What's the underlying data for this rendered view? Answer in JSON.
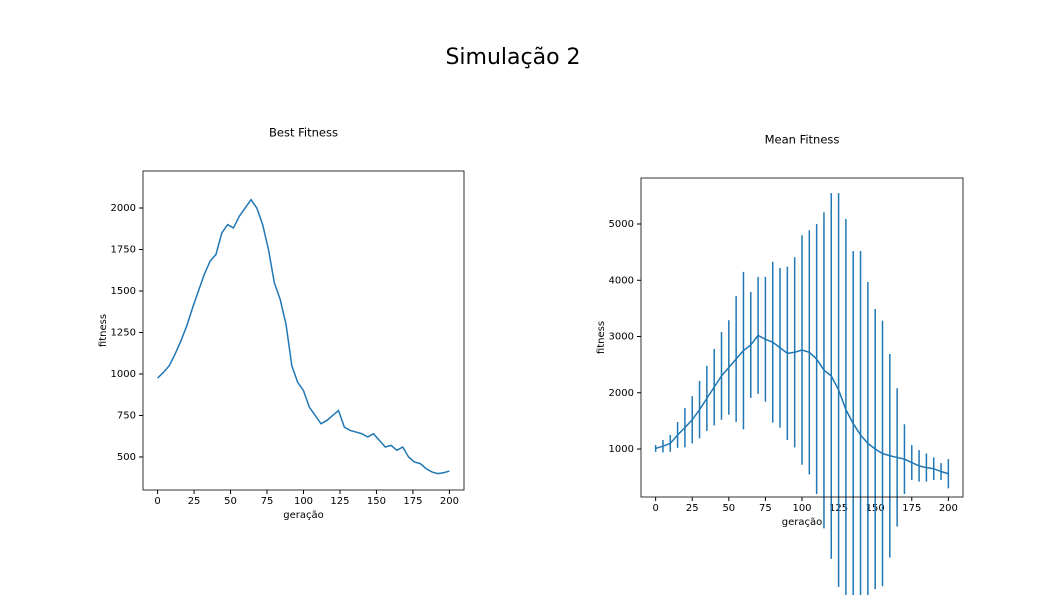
{
  "title": "Simulação 2",
  "chart_data": [
    {
      "type": "line",
      "title": "Best Fitness",
      "xlabel": "geração",
      "ylabel": "fitness",
      "x": [
        0,
        4,
        8,
        12,
        16,
        20,
        24,
        28,
        32,
        36,
        40,
        44,
        48,
        52,
        56,
        60,
        64,
        68,
        72,
        76,
        80,
        84,
        88,
        92,
        96,
        100,
        104,
        108,
        112,
        116,
        120,
        124,
        128,
        132,
        136,
        140,
        144,
        148,
        152,
        156,
        160,
        164,
        168,
        172,
        176,
        180,
        184,
        188,
        192,
        196,
        200
      ],
      "series": [
        {
          "name": "Best Fitness",
          "color": "#1f77b4",
          "values": [
            975,
            1010,
            1050,
            1120,
            1200,
            1290,
            1400,
            1500,
            1600,
            1680,
            1720,
            1850,
            1900,
            1880,
            1950,
            2000,
            2050,
            2000,
            1900,
            1750,
            1550,
            1450,
            1300,
            1050,
            950,
            900,
            800,
            750,
            700,
            720,
            750,
            780,
            680,
            660,
            650,
            640,
            620,
            640,
            600,
            560,
            570,
            540,
            560,
            500,
            470,
            460,
            430,
            410,
            400,
            405,
            415
          ]
        }
      ],
      "xlim": [
        -10,
        210
      ],
      "ylim": [
        301,
        2223
      ],
      "xticks": [
        0,
        25,
        50,
        75,
        100,
        125,
        150,
        175,
        200
      ],
      "yticks": [
        500,
        750,
        1000,
        1250,
        1500,
        1750,
        2000
      ]
    },
    {
      "type": "errorbar",
      "title": "Mean Fitness",
      "xlabel": "geração",
      "ylabel": "fitness",
      "x": [
        0,
        5,
        10,
        15,
        20,
        25,
        30,
        35,
        40,
        45,
        50,
        55,
        60,
        65,
        70,
        75,
        80,
        85,
        90,
        95,
        100,
        105,
        110,
        115,
        120,
        125,
        130,
        135,
        140,
        145,
        150,
        155,
        160,
        165,
        170,
        175,
        180,
        185,
        190,
        195,
        200
      ],
      "series": [
        {
          "name": "Mean Fitness",
          "color": "#1f77b4",
          "values": [
            1010,
            1050,
            1100,
            1250,
            1380,
            1520,
            1700,
            1900,
            2100,
            2300,
            2450,
            2600,
            2750,
            2850,
            3020,
            2950,
            2900,
            2800,
            2700,
            2720,
            2760,
            2720,
            2600,
            2400,
            2300,
            2050,
            1700,
            1450,
            1250,
            1100,
            1000,
            920,
            880,
            850,
            820,
            760,
            700,
            670,
            650,
            600,
            560
          ],
          "errors": [
            60,
            110,
            150,
            230,
            350,
            420,
            510,
            580,
            680,
            780,
            840,
            1120,
            1400,
            940,
            1040,
            1110,
            1430,
            1420,
            1540,
            1690,
            2040,
            2170,
            2400,
            2810,
            3250,
            3500,
            3390,
            3070,
            3270,
            2870,
            2490,
            2360,
            1810,
            1230,
            620,
            310,
            280,
            250,
            200,
            150,
            260
          ]
        }
      ],
      "xlim": [
        -10,
        210
      ],
      "ylim": [
        147,
        5818
      ],
      "xticks": [
        0,
        25,
        50,
        75,
        100,
        125,
        150,
        175,
        200
      ],
      "yticks": [
        1000,
        2000,
        3000,
        4000,
        5000
      ]
    }
  ]
}
